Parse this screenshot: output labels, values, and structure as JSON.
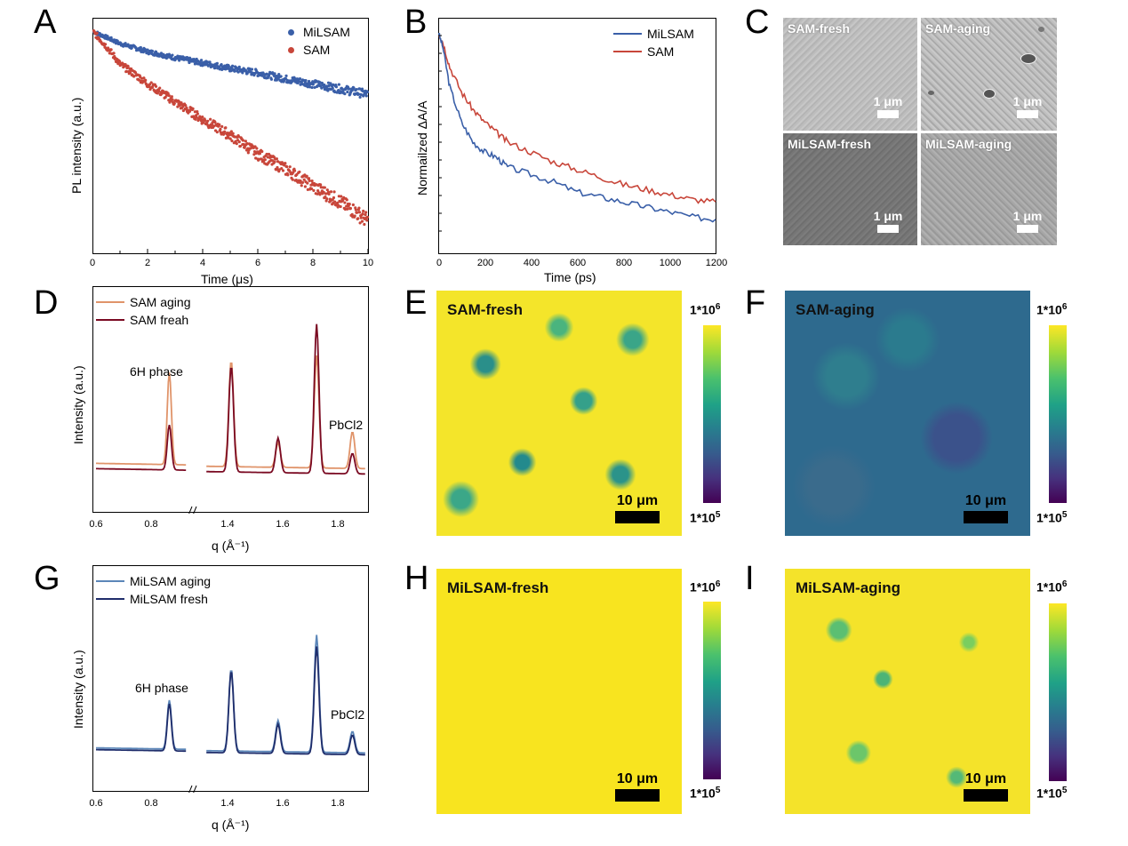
{
  "panels": {
    "A": "A",
    "B": "B",
    "C": "C",
    "D": "D",
    "E": "E",
    "F": "F",
    "G": "G",
    "H": "H",
    "I": "I"
  },
  "colors": {
    "blue": "#3a5fa8",
    "red": "#c8463a",
    "sam_aging": "#e0946a",
    "sam_fresh": "#7a0a22",
    "milsam_aging": "#5b86b8",
    "milsam_fresh": "#1f2d6b"
  },
  "chart_data": [
    {
      "id": "A",
      "type": "scatter",
      "xlabel": "Time (μs)",
      "ylabel": "PL intensity (a.u.)",
      "xlim": [
        0,
        10
      ],
      "xticks": [
        "0",
        "2",
        "4",
        "6",
        "8",
        "10"
      ],
      "yscale": "log",
      "legend": [
        {
          "name": "MiLSAM"
        },
        {
          "name": "SAM"
        }
      ],
      "series": [
        {
          "name": "MiLSAM",
          "x": [
            0,
            1,
            2,
            3,
            4,
            5,
            6,
            7,
            8,
            9,
            10
          ],
          "values": [
            1.0,
            0.88,
            0.81,
            0.76,
            0.72,
            0.68,
            0.65,
            0.61,
            0.58,
            0.55,
            0.52
          ]
        },
        {
          "name": "SAM",
          "x": [
            0,
            1,
            2,
            3,
            4,
            5,
            6,
            7,
            8,
            9,
            10
          ],
          "values": [
            1.0,
            0.71,
            0.58,
            0.48,
            0.4,
            0.34,
            0.28,
            0.24,
            0.2,
            0.17,
            0.14
          ]
        }
      ]
    },
    {
      "id": "B",
      "type": "line",
      "xlabel": "Time  (ps)",
      "ylabel": "Normailzed ΔA/A",
      "xlim": [
        0,
        1200
      ],
      "xticks": [
        "0",
        "200",
        "400",
        "600",
        "800",
        "1000",
        "1200"
      ],
      "legend": [
        {
          "name": "MiLSAM"
        },
        {
          "name": "SAM"
        }
      ],
      "series": [
        {
          "name": "MiLSAM",
          "x": [
            0,
            20,
            50,
            100,
            150,
            200,
            250,
            300,
            400,
            500,
            600,
            700,
            800,
            900,
            1000,
            1100,
            1200
          ],
          "values": [
            1.0,
            0.94,
            0.78,
            0.64,
            0.56,
            0.52,
            0.5,
            0.46,
            0.43,
            0.4,
            0.36,
            0.34,
            0.32,
            0.3,
            0.28,
            0.26,
            0.25
          ]
        },
        {
          "name": "SAM",
          "x": [
            0,
            20,
            50,
            100,
            150,
            200,
            250,
            300,
            400,
            500,
            600,
            700,
            800,
            900,
            1000,
            1100,
            1200
          ],
          "values": [
            1.0,
            0.96,
            0.86,
            0.76,
            0.69,
            0.64,
            0.6,
            0.56,
            0.52,
            0.48,
            0.45,
            0.42,
            0.39,
            0.37,
            0.35,
            0.33,
            0.32
          ]
        }
      ]
    },
    {
      "id": "D",
      "type": "line",
      "xlabel": "q (Å⁻¹)",
      "ylabel": "Intensity (a.u.)",
      "xticks": [
        "0.6",
        "0.8",
        "1.4",
        "1.6",
        "1.8"
      ],
      "annotations": [
        "6H phase",
        "PbCl2"
      ],
      "legend": [
        {
          "name": "SAM aging"
        },
        {
          "name": "SAM freah"
        }
      ],
      "peaks": [
        {
          "name": "SAM aging",
          "positions": [
            0.9,
            1.41,
            1.58,
            1.72,
            1.85
          ],
          "heights": [
            0.45,
            0.52,
            0.12,
            0.55,
            0.18
          ]
        },
        {
          "name": "SAM freah",
          "positions": [
            0.9,
            1.41,
            1.58,
            1.72,
            1.85
          ],
          "heights": [
            0.22,
            0.52,
            0.17,
            0.73,
            0.1
          ]
        }
      ]
    },
    {
      "id": "G",
      "type": "line",
      "xlabel": "q (Å⁻¹)",
      "ylabel": "Intensity (a.u.)",
      "xticks": [
        "0.6",
        "0.8",
        "1.4",
        "1.6",
        "1.8"
      ],
      "annotations": [
        "6H phase",
        "PbCl2"
      ],
      "legend": [
        {
          "name": "MiLSAM aging"
        },
        {
          "name": "MiLSAM fresh"
        }
      ],
      "peaks": [
        {
          "name": "MiLSAM aging",
          "positions": [
            0.9,
            1.41,
            1.58,
            1.72,
            1.85
          ],
          "heights": [
            0.25,
            0.42,
            0.16,
            0.6,
            0.11
          ]
        },
        {
          "name": "MiLSAM fresh",
          "positions": [
            0.9,
            1.41,
            1.58,
            1.72,
            1.85
          ],
          "heights": [
            0.24,
            0.42,
            0.15,
            0.55,
            0.1
          ]
        }
      ]
    }
  ],
  "sem_images": [
    {
      "label": "SAM-fresh",
      "scale": "1 μm"
    },
    {
      "label": "SAM-aging",
      "scale": "1 μm"
    },
    {
      "label": "MiLSAM-fresh",
      "scale": "1 μm"
    },
    {
      "label": "MiLSAM-aging",
      "scale": "1 μm"
    }
  ],
  "pl_maps": [
    {
      "label": "SAM-fresh",
      "scale": "10 μm",
      "cbar_top": "1*10",
      "cbar_bottom": "1*10",
      "top_exp": "6",
      "bottom_exp": "5"
    },
    {
      "label": "SAM-aging",
      "scale": "10 μm",
      "cbar_top": "1*10",
      "cbar_bottom": "1*10",
      "top_exp": "6",
      "bottom_exp": "5"
    },
    {
      "label": "MiLSAM-fresh",
      "scale": "10 μm",
      "cbar_top": "1*10",
      "cbar_bottom": "1*10",
      "top_exp": "6",
      "bottom_exp": "5"
    },
    {
      "label": "MiLSAM-aging",
      "scale": "10 μm",
      "cbar_top": "1*10",
      "cbar_bottom": "1*10",
      "top_exp": "6",
      "bottom_exp": "5"
    }
  ]
}
